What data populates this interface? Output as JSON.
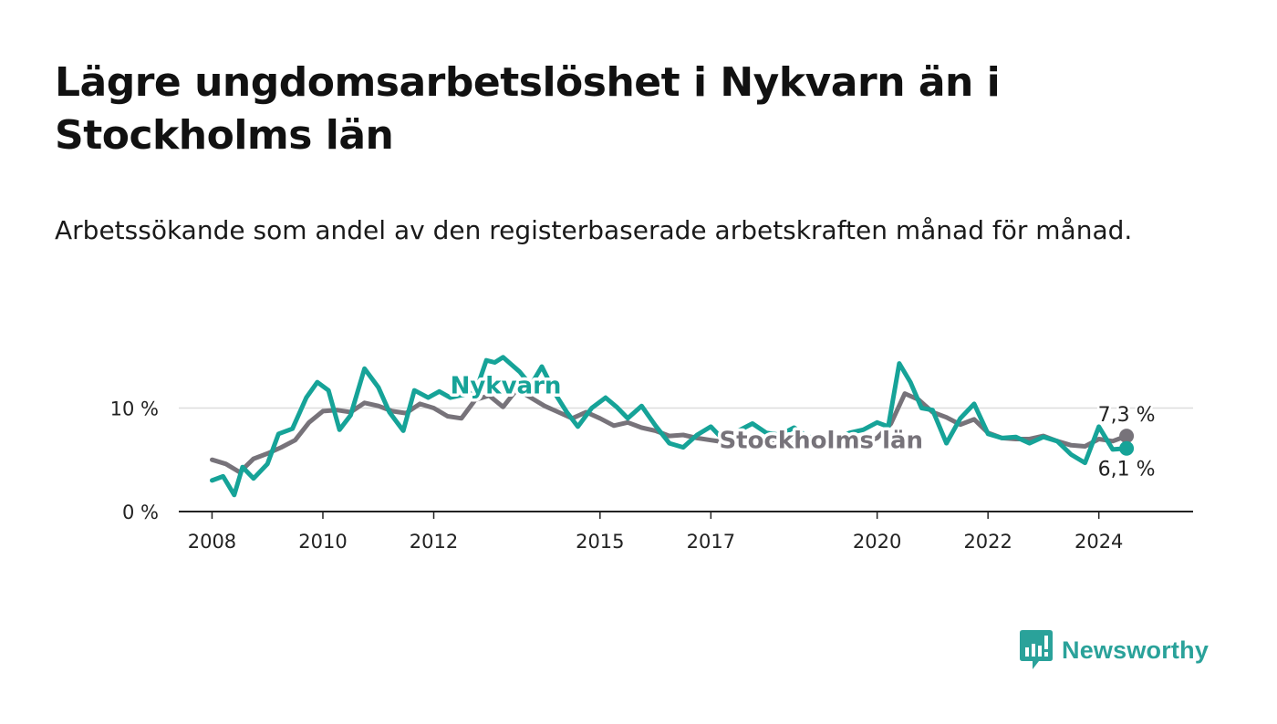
{
  "title": "Lägre ungdomsarbetslöshet i Nykvarn än i Stockholms län",
  "subtitle": "Arbetssökande som andel av den registerbaserade arbetskraften månad för månad.",
  "brand": {
    "name": "Newsworthy"
  },
  "colors": {
    "nykvarn": "#16a398",
    "stockholm": "#77737a",
    "grid": "#dddddd",
    "axis": "#222222",
    "brand": "#2aa29a"
  },
  "chart_data": {
    "type": "line",
    "title": "Lägre ungdomsarbetslöshet i Nykvarn än i Stockholms län",
    "xlabel": "",
    "ylabel": "",
    "xlim": [
      2007.4,
      2025.7
    ],
    "ylim": [
      0,
      15.5
    ],
    "y_ticks": [
      {
        "value": 0,
        "label": "0 %"
      },
      {
        "value": 10,
        "label": "10 %"
      }
    ],
    "x_ticks": [
      {
        "value": 2008,
        "label": "2008"
      },
      {
        "value": 2010,
        "label": "2010"
      },
      {
        "value": 2012,
        "label": "2012"
      },
      {
        "value": 2015,
        "label": "2015"
      },
      {
        "value": 2017,
        "label": "2017"
      },
      {
        "value": 2020,
        "label": "2020"
      },
      {
        "value": 2022,
        "label": "2022"
      },
      {
        "value": 2024,
        "label": "2024"
      }
    ],
    "grid": "horizontal",
    "series": [
      {
        "name": "Stockholms län",
        "label": "Stockholms län",
        "label_at": [
          2017.15,
          6.1
        ],
        "end_label": "7,3 %",
        "end_value": 7.3,
        "x": [
          2008.0,
          2008.25,
          2008.5,
          2008.75,
          2009.0,
          2009.25,
          2009.5,
          2009.75,
          2010.0,
          2010.25,
          2010.5,
          2010.75,
          2011.0,
          2011.25,
          2011.5,
          2011.75,
          2012.0,
          2012.25,
          2012.5,
          2012.75,
          2013.0,
          2013.25,
          2013.5,
          2013.75,
          2014.0,
          2014.25,
          2014.5,
          2014.75,
          2015.0,
          2015.25,
          2015.5,
          2015.75,
          2016.0,
          2016.25,
          2016.5,
          2016.75,
          2017.0,
          2017.25,
          2017.5,
          2017.75,
          2018.0,
          2018.25,
          2018.5,
          2018.75,
          2019.0,
          2019.25,
          2019.5,
          2019.75,
          2020.0,
          2020.25,
          2020.5,
          2020.75,
          2021.0,
          2021.25,
          2021.5,
          2021.75,
          2022.0,
          2022.25,
          2022.5,
          2022.75,
          2023.0,
          2023.25,
          2023.5,
          2023.75,
          2024.0,
          2024.25,
          2024.5
        ],
        "values": [
          5.0,
          4.6,
          3.8,
          5.1,
          5.6,
          6.2,
          6.9,
          8.6,
          9.7,
          9.8,
          9.6,
          10.5,
          10.2,
          9.7,
          9.5,
          10.4,
          10.0,
          9.2,
          9.0,
          10.8,
          11.2,
          10.1,
          11.8,
          11.0,
          10.2,
          9.6,
          9.0,
          9.6,
          9.0,
          8.3,
          8.6,
          8.1,
          7.8,
          7.3,
          7.4,
          7.1,
          6.9,
          6.7,
          6.6,
          6.7,
          6.7,
          6.6,
          6.8,
          6.5,
          6.6,
          6.4,
          6.7,
          6.6,
          7.1,
          8.5,
          11.4,
          10.8,
          9.6,
          9.1,
          8.4,
          8.9,
          7.6,
          7.1,
          7.0,
          7.0,
          7.3,
          6.8,
          6.4,
          6.3,
          7.0,
          6.8,
          7.3
        ]
      },
      {
        "name": "Nykvarn",
        "label": "Nykvarn",
        "label_at": [
          2013.3,
          11.4
        ],
        "end_label": "6,1 %",
        "end_value": 6.1,
        "x": [
          2008.0,
          2008.2,
          2008.4,
          2008.55,
          2008.75,
          2009.0,
          2009.2,
          2009.45,
          2009.7,
          2009.9,
          2010.1,
          2010.3,
          2010.5,
          2010.75,
          2011.0,
          2011.2,
          2011.45,
          2011.65,
          2011.9,
          2012.1,
          2012.3,
          2012.55,
          2012.75,
          2012.95,
          2013.1,
          2013.25,
          2013.4,
          2013.55,
          2013.75,
          2013.95,
          2014.2,
          2014.4,
          2014.6,
          2014.85,
          2015.1,
          2015.3,
          2015.5,
          2015.75,
          2016.0,
          2016.25,
          2016.5,
          2016.75,
          2017.0,
          2017.25,
          2017.5,
          2017.75,
          2018.0,
          2018.25,
          2018.5,
          2018.75,
          2019.0,
          2019.25,
          2019.5,
          2019.75,
          2020.0,
          2020.2,
          2020.4,
          2020.6,
          2020.8,
          2021.0,
          2021.25,
          2021.5,
          2021.75,
          2022.0,
          2022.25,
          2022.5,
          2022.75,
          2023.0,
          2023.25,
          2023.5,
          2023.75,
          2024.0,
          2024.25,
          2024.5
        ],
        "values": [
          3.0,
          3.4,
          1.6,
          4.3,
          3.2,
          4.6,
          7.5,
          8.0,
          11.0,
          12.5,
          11.7,
          7.9,
          9.3,
          13.8,
          12.0,
          9.6,
          7.8,
          11.7,
          11.0,
          11.6,
          11.0,
          11.3,
          11.5,
          14.6,
          14.4,
          14.9,
          14.2,
          13.5,
          12.2,
          14.0,
          11.3,
          9.6,
          8.2,
          10.0,
          11.0,
          10.1,
          9.0,
          10.2,
          8.3,
          6.6,
          6.2,
          7.4,
          8.2,
          6.8,
          7.8,
          8.5,
          7.6,
          7.4,
          8.1,
          7.2,
          7.1,
          6.9,
          7.6,
          7.9,
          8.6,
          8.2,
          14.3,
          12.5,
          10.0,
          9.8,
          6.6,
          9.0,
          10.4,
          7.5,
          7.1,
          7.2,
          6.6,
          7.2,
          6.8,
          5.5,
          4.7,
          8.2,
          6.0,
          6.1
        ]
      }
    ]
  }
}
